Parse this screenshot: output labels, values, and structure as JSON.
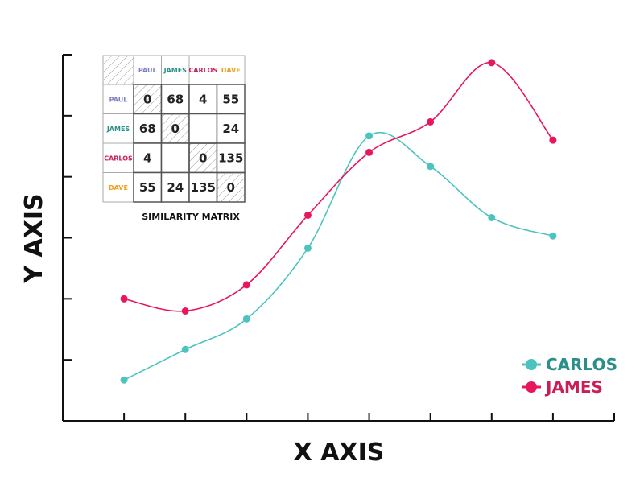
{
  "chart_data": [
    {
      "type": "line",
      "xlabel": "X AXIS",
      "ylabel": "Y AXIS",
      "x": [
        1,
        2,
        3,
        4,
        5,
        6,
        7,
        8
      ],
      "xlim": [
        0,
        9
      ],
      "ylim": [
        0,
        6
      ],
      "grid": false,
      "legend_position": "bottom-right",
      "series": [
        {
          "name": "CARLOS",
          "color": "#4cc3bd",
          "text_color": "#2a8f89",
          "values": [
            0.67,
            1.17,
            1.67,
            2.83,
            4.67,
            4.17,
            3.33,
            3.03
          ]
        },
        {
          "name": "JAMES",
          "color": "#e8175d",
          "text_color": "#c81f58",
          "values": [
            2.0,
            1.8,
            2.23,
            3.37,
            4.4,
            4.9,
            5.87,
            4.6
          ]
        }
      ]
    },
    {
      "type": "table",
      "title": "SIMILARITY MATRIX",
      "names": [
        "PAUL",
        "JAMES",
        "CARLOS",
        "DAVE"
      ],
      "name_colors": [
        "#7b7fc4",
        "#2a8f89",
        "#c81f58",
        "#f0a020"
      ],
      "values": [
        [
          "0",
          "68",
          "4",
          "55"
        ],
        [
          "68",
          "0",
          "",
          "24"
        ],
        [
          "4",
          "",
          "0",
          "135"
        ],
        [
          "55",
          "24",
          "135",
          "0"
        ]
      ]
    }
  ]
}
